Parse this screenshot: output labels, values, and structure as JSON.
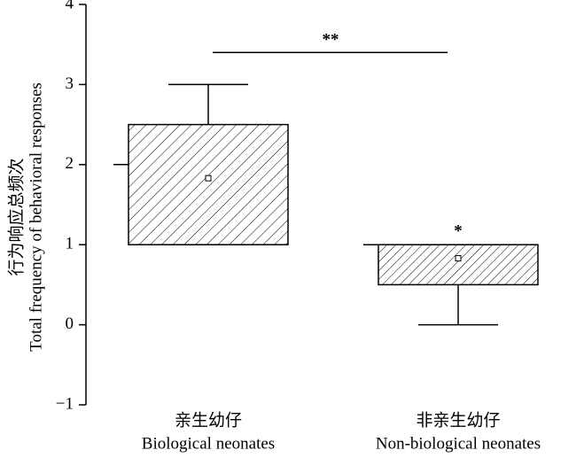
{
  "chart_data": {
    "type": "box",
    "y_label": [
      "行为响应总频次",
      "Total frequency of behavioral responses"
    ],
    "categories": [
      "亲生幼仔",
      "非亲生幼仔"
    ],
    "categories_en": [
      "Biological neonates",
      "Non-biological neonates"
    ],
    "boxes": [
      {
        "q1": 1,
        "q3": 2.5,
        "whisker_low": 1,
        "whisker_high": 3,
        "median": 2,
        "mean": 1.83
      },
      {
        "q1": 0.5,
        "q3": 1,
        "whisker_low": 0,
        "whisker_high": 1,
        "median": 1,
        "mean": 0.83
      }
    ],
    "color": "#000000",
    "ylim": [
      -1,
      4
    ],
    "yticks": [
      {
        "value": -1,
        "label": "−1"
      },
      0,
      1,
      2,
      3,
      4
    ],
    "significance": {
      "label": "**",
      "value": 3.4
    },
    "box_annotations": [
      null,
      {
        "label": "*",
        "value": 1.2
      }
    ]
  }
}
